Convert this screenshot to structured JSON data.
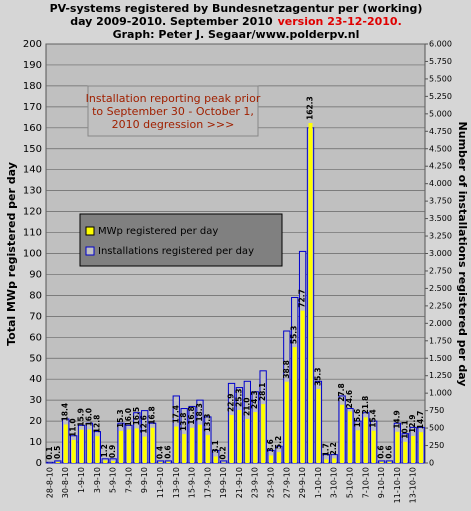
{
  "chart_data": {
    "type": "bar",
    "title_line1": "PV-systems registered by Bundesnetzagentur per (working)",
    "title_line2": "day 2009-2010. September 2010",
    "title_version": "version 23-12-2010.",
    "title_line3": "Graph: Peter J. Segaar/www.polderpv.nl",
    "annotation": [
      "Installation reporting peak prior",
      "to September 30 - October 1,",
      "2010 degression >>>"
    ],
    "ylabel": "Total MWp registered per day",
    "y2label": "Number of installations registered per day",
    "legend": "left",
    "grid": true,
    "categories": [
      "28-8-10",
      null,
      "30-8-10",
      null,
      "1-9-10",
      null,
      "3-9-10",
      null,
      "5-9-10",
      null,
      "7-9-10",
      null,
      "9-9-10",
      null,
      "11-9-10",
      null,
      "13-9-10",
      null,
      "15-9-10",
      null,
      "17-9-10",
      null,
      "19-9-10",
      null,
      "21-9-10",
      null,
      "23-9-10",
      null,
      "25-9-10",
      null,
      "27-9-10",
      null,
      "29-9-10",
      null,
      "1-10-10",
      null,
      "3-10-10",
      null,
      "5-10-10",
      null,
      "7-10-10",
      null,
      "9-10-10",
      null,
      "11-10-10",
      null,
      "13-10-10",
      null
    ],
    "series": [
      {
        "name": "Installations registered per day",
        "color": "#0000cc",
        "axis": "y2",
        "values": [
          10,
          30,
          630,
          390,
          540,
          570,
          450,
          60,
          60,
          570,
          540,
          720,
          750,
          570,
          30,
          30,
          960,
          780,
          810,
          900,
          660,
          180,
          30,
          1140,
          1080,
          1170,
          1020,
          1320,
          180,
          240,
          1890,
          2370,
          3030,
          4800,
          1170,
          120,
          120,
          960,
          780,
          600,
          720,
          600,
          30,
          30,
          570,
          420,
          510,
          510
        ]
      },
      {
        "name": "MWp registered per day",
        "color": "#ffff00",
        "values": [
          0.1,
          0.5,
          18.4,
          11.0,
          15.9,
          16.0,
          12.8,
          1.2,
          0.9,
          15.3,
          16.0,
          16.5,
          12.6,
          16.8,
          0.4,
          0.6,
          17.4,
          13.8,
          16.8,
          18.3,
          13.3,
          3.1,
          0.2,
          22.9,
          25.3,
          21.0,
          24.3,
          28.1,
          3.6,
          5.2,
          38.8,
          55.3,
          72.7,
          162.3,
          35.3,
          1.7,
          2.2,
          27.8,
          24.6,
          15.6,
          21.8,
          15.4,
          0.6,
          0.6,
          14.9,
          10.1,
          12.9,
          14.7
        ],
        "value_labels": [
          "0.1",
          "0.5",
          "18.4",
          "11.0",
          "15.9",
          "16.0",
          "12.8",
          "1.2",
          "0.9",
          "15.3",
          "16.0",
          "16.5",
          "12.6",
          "16.8",
          "0.4",
          "0.6",
          "17.4",
          "13.8",
          "16.8",
          "18.3",
          "13.3",
          "3.1",
          "0.2",
          "22.9",
          "25.3",
          "21.0",
          "24.3",
          "28.1",
          "3.6",
          "5.2",
          "38.8",
          "55.3",
          "72.7",
          "162.3",
          "35.3",
          "1.7",
          "2.2",
          "27.8",
          "24.6",
          "15.6",
          "21.8",
          "15.4",
          "0.6",
          "0.6",
          "14.9",
          "10.1",
          "12.9",
          "14.7"
        ]
      }
    ],
    "ylim": [
      0,
      200
    ],
    "yticks": [
      0,
      10,
      20,
      30,
      40,
      50,
      60,
      70,
      80,
      90,
      100,
      110,
      120,
      130,
      140,
      150,
      160,
      170,
      180,
      190,
      200
    ],
    "y2lim": [
      0,
      6000
    ],
    "y2ticks": [
      0,
      250,
      500,
      750,
      {
        "value": 1000,
        "label": "1.000"
      },
      {
        "value": 1250,
        "label": "1.250"
      },
      {
        "value": 1500,
        "label": "1.500"
      },
      {
        "value": 1750,
        "label": "1.750"
      },
      {
        "value": 2000,
        "label": "2.000"
      },
      {
        "value": 2250,
        "label": "2.250"
      },
      {
        "value": 2500,
        "label": "2.500"
      },
      {
        "value": 2750,
        "label": "2.750"
      },
      {
        "value": 3000,
        "label": "3.000"
      },
      {
        "value": 3250,
        "label": "3.250"
      },
      {
        "value": 3500,
        "label": "3.500"
      },
      {
        "value": 3750,
        "label": "3.750"
      },
      {
        "value": 4000,
        "label": "4.000"
      },
      {
        "value": 4250,
        "label": "4.250"
      },
      {
        "value": 4500,
        "label": "4.500"
      },
      {
        "value": 4750,
        "label": "4.750"
      },
      {
        "value": 5000,
        "label": "5.000"
      },
      {
        "value": 5250,
        "label": "5.250"
      },
      {
        "value": 5500,
        "label": "5.500"
      },
      {
        "value": 5750,
        "label": "5.750"
      },
      {
        "value": 6000,
        "label": "6.000"
      }
    ]
  }
}
